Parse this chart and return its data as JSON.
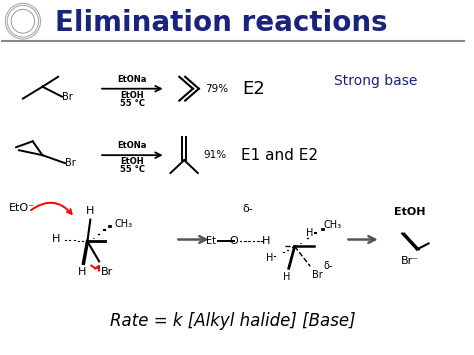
{
  "title": "Elimination reactions",
  "title_color": "#1a237e",
  "title_fontsize": 20,
  "background_color": "#ffffff",
  "strong_base_text": "Strong base",
  "strong_base_color": "#1a237e",
  "e2_label": "E2",
  "e1e2_label": "E1 and E2",
  "yield1": "79%",
  "yield2": "91%",
  "rate_eq": "Rate = k [Alkyl halide] [Base]",
  "fig_width": 4.74,
  "fig_height": 3.55,
  "dpi": 100
}
